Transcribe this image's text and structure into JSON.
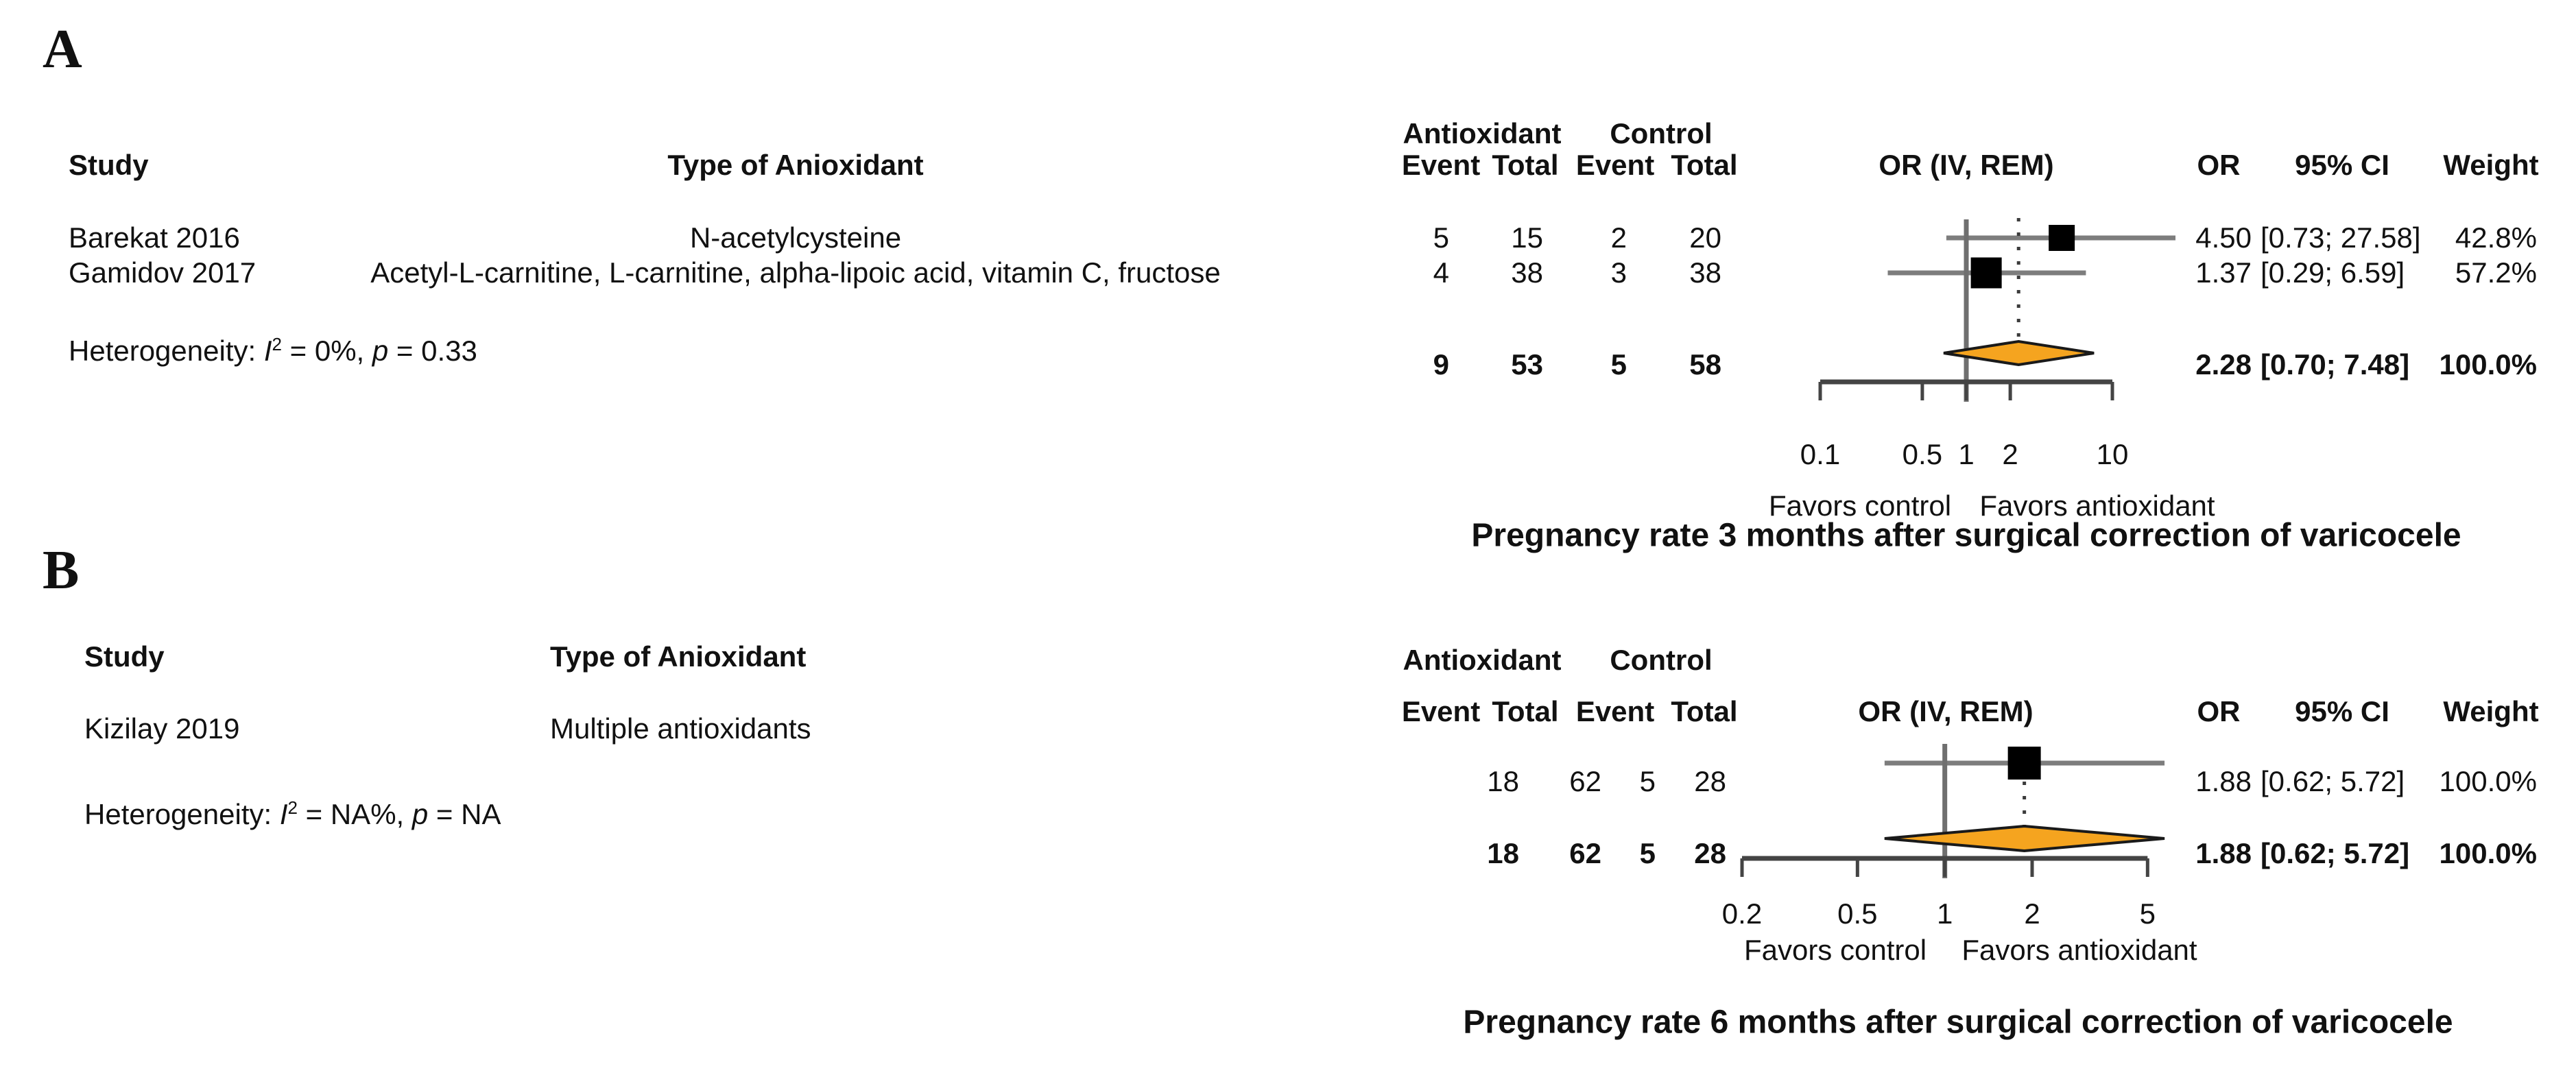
{
  "colors": {
    "text": "#111111",
    "ci_line": "#7d7d7d",
    "reference_line": "#6f6f6f",
    "dashed_line": "#3c3c3c",
    "axis": "#444444",
    "square": "#000000",
    "diamond_fill": "#F5A41F",
    "diamond_stroke": "#1a1a1a"
  },
  "chart_data": [
    {
      "type": "forest",
      "panel_label": "A",
      "title": "Pregnancy rate 3 months after surgical correction of varicocele",
      "headers": {
        "study": "Study",
        "type": "Type of Anioxidant",
        "group1": "Antioxidant",
        "group2": "Control",
        "sub": [
          "Event",
          "Total",
          "Event",
          "Total"
        ],
        "plot": "OR (IV, REM)",
        "or": "OR",
        "ci": "95% CI",
        "weight": "Weight"
      },
      "studies": [
        {
          "study": "Barekat 2016",
          "type": "N-acetylcysteine",
          "e1": "5",
          "n1": "15",
          "e2": "2",
          "n2": "20",
          "or": 4.5,
          "lo": 0.73,
          "hi": 27.58,
          "or_text": "4.50",
          "ci_text": "[0.73; 27.58]",
          "weight_text": "42.8%"
        },
        {
          "study": "Gamidov 2017",
          "type": "Acetyl-L-carnitine, L-carnitine, alpha-lipoic acid, vitamin C, fructose",
          "e1": "4",
          "n1": "38",
          "e2": "3",
          "n2": "38",
          "or": 1.37,
          "lo": 0.29,
          "hi": 6.59,
          "or_text": "1.37",
          "ci_text": "[0.29;  6.59]",
          "weight_text": "57.2%"
        }
      ],
      "total": {
        "e1": "9",
        "n1": "53",
        "e2": "5",
        "n2": "58",
        "or": 2.28,
        "lo": 0.7,
        "hi": 7.48,
        "or_text": "2.28",
        "ci_text": "[0.70;  7.48]",
        "weight_text": "100.0%"
      },
      "heterogeneity": [
        {
          "text": "Heterogeneity: "
        },
        {
          "text": "I",
          "italic": true
        },
        {
          "text": "2",
          "sup": true
        },
        {
          "text": " = 0%, "
        },
        {
          "text": "p",
          "italic": true
        },
        {
          "text": " = 0.33"
        }
      ],
      "axis": {
        "scale": "log",
        "range": [
          0.1,
          10
        ],
        "tick_values": [
          0.1,
          0.5,
          1,
          2,
          10
        ],
        "ticks": [
          "0.1",
          "0.5",
          "1",
          "2",
          "10"
        ],
        "reference_line": 1,
        "dashed_line_at": 2.28,
        "favors_left": "Favors control",
        "favors_right": "Favors antioxidant"
      }
    },
    {
      "type": "forest",
      "panel_label": "B",
      "title": "Pregnancy rate 6 months after surgical correction of varicocele",
      "headers": {
        "study": "Study",
        "type": "Type of Anioxidant",
        "group1": "Antioxidant",
        "group2": "Control",
        "sub": [
          "Event",
          "Total",
          "Event",
          "Total"
        ],
        "plot": "OR (IV, REM)",
        "or": "OR",
        "ci": "95% CI",
        "weight": "Weight"
      },
      "studies": [
        {
          "study": "Kizilay 2019",
          "type": "Multiple antioxidants",
          "e1": "18",
          "n1": "62",
          "e2": "5",
          "n2": "28",
          "or": 1.88,
          "lo": 0.62,
          "hi": 5.72,
          "or_text": "1.88",
          "ci_text": "[0.62; 5.72]",
          "weight_text": "100.0%"
        }
      ],
      "total": {
        "e1": "18",
        "n1": "62",
        "e2": "5",
        "n2": "28",
        "or": 1.88,
        "lo": 0.62,
        "hi": 5.72,
        "or_text": "1.88",
        "ci_text": "[0.62; 5.72]",
        "weight_text": "100.0%"
      },
      "heterogeneity": [
        {
          "text": "Heterogeneity: "
        },
        {
          "text": "I",
          "italic": true
        },
        {
          "text": "2",
          "sup": true
        },
        {
          "text": " = NA%, "
        },
        {
          "text": "p",
          "italic": true
        },
        {
          "text": " = NA"
        }
      ],
      "axis": {
        "scale": "log",
        "range": [
          0.2,
          5
        ],
        "tick_values": [
          0.2,
          0.5,
          1,
          2,
          5
        ],
        "ticks": [
          "0.2",
          "0.5",
          "1",
          "2",
          "5"
        ],
        "reference_line": 1,
        "dashed_line_at": 1.88,
        "favors_left": "Favors control",
        "favors_right": "Favors antioxidant"
      }
    }
  ]
}
